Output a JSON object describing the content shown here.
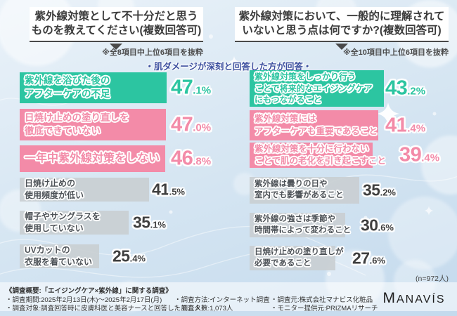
{
  "header": {
    "left_title_line1": "紫外線対策として不十分だと思う",
    "left_title_line2": "ものを教えてください(複数回答可)",
    "left_note": "※全8項目中上位6項目を抜粋",
    "right_title_line1": "紫外線対策において、一般的に理解されて",
    "right_title_line2": "いないと思う点は何ですか?(複数回答可)",
    "right_note": "※全10項目中上位6項目を抜粋",
    "center_caption": "・肌ダメージが深刻と回答した方が回答・"
  },
  "colors": {
    "teal": "#2cc5a1",
    "pink": "#f38ba8",
    "gray": "#c9ced2",
    "dark_text": "#4d5257",
    "navy": "#3d509f"
  },
  "chart_data": [
    {
      "type": "bar",
      "orientation": "horizontal",
      "unit": "%",
      "title": "紫外線対策として不十分だと思うものを教えてください(複数回答可)",
      "note": "※全8項目中上位6項目を抜粋",
      "categories": [
        "紫外線を浴びた後のアフターケアの不足",
        "日焼け止めの塗り直しを徹底できていない",
        "一年中紫外線対策をしない",
        "日焼け止めの使用頻度が低い",
        "帽子やサングラスを使用していない",
        "UVカットの衣服を着ていない"
      ],
      "values": [
        47.1,
        47.0,
        46.8,
        41.5,
        35.1,
        25.4
      ],
      "items": [
        {
          "label_lines": [
            "紫外線を浴びた後の",
            "アフターケアの不足"
          ],
          "value": 47.1,
          "color": "teal"
        },
        {
          "label_lines": [
            "日焼け止めの塗り直しを",
            "徹底できていない"
          ],
          "value": 47.0,
          "color": "pink"
        },
        {
          "label_lines": [
            "一年中紫外線対策をしない"
          ],
          "value": 46.8,
          "color": "pink"
        },
        {
          "label_lines": [
            "日焼け止めの",
            "使用頻度が低い"
          ],
          "value": 41.5,
          "color": "gray"
        },
        {
          "label_lines": [
            "帽子やサングラスを",
            "使用していない"
          ],
          "value": 35.1,
          "color": "gray"
        },
        {
          "label_lines": [
            "UVカットの",
            "衣服を着ていない"
          ],
          "value": 25.4,
          "color": "gray"
        }
      ]
    },
    {
      "type": "bar",
      "orientation": "horizontal",
      "unit": "%",
      "title": "紫外線対策において、一般的に理解されていないと思う点は何ですか?(複数回答可)",
      "note": "※全10項目中上位6項目を抜粋",
      "categories": [
        "紫外線対策をしっかり行うことで将来的なエイジングケアにもつながること",
        "紫外線対策にはアフターケアも重要であること",
        "紫外線対策を十分に行わないことで肌の老化を引き起こすこと",
        "紫外線は曇りの日や室内でも影響があること",
        "紫外線の強さは季節や時間帯によって変わること",
        "日焼け止めの塗り直しが必要であること"
      ],
      "values": [
        43.2,
        41.4,
        39.4,
        35.2,
        30.6,
        27.6
      ],
      "items": [
        {
          "label_lines": [
            "紫外線対策をしっかり行う",
            "ことで将来的なエイジングケア",
            "にもつながること"
          ],
          "value": 43.2,
          "color": "teal"
        },
        {
          "label_lines": [
            "紫外線対策には",
            "アフターケアも重要であること"
          ],
          "value": 41.4,
          "color": "pink"
        },
        {
          "label_lines": [
            "紫外線対策を十分に行わない",
            "ことで肌の老化を引き起こすこと"
          ],
          "value": 39.4,
          "color": "pink"
        },
        {
          "label_lines": [
            "紫外線は曇りの日や",
            "室内でも影響があること"
          ],
          "value": 35.2,
          "color": "gray"
        },
        {
          "label_lines": [
            "紫外線の強さは季節や",
            "時間帯によって変わること"
          ],
          "value": 30.6,
          "color": "gray"
        },
        {
          "label_lines": [
            "日焼け止めの塗り直しが",
            "必要であること"
          ],
          "value": 27.6,
          "color": "gray"
        }
      ]
    }
  ],
  "sample_size_note": "(n=972人)",
  "footer": {
    "summary": "《調査概要:「エイジングケア×紫外線」に関する調査》",
    "period": "・調査期間:2025年2月13日(木)〜2025年2月17日(月)",
    "method": "・調査方法:インターネット調査",
    "source": "・調査元:株式会社マナビス化粧品",
    "target": "・調査対象:調査回答時に皮膚科医と美容ナースと回答したモニター",
    "count": "・調査人数:1,073人",
    "provider": "・モニター提供元:PRIZMAリサーチ",
    "logo": "MANAVÍS"
  }
}
